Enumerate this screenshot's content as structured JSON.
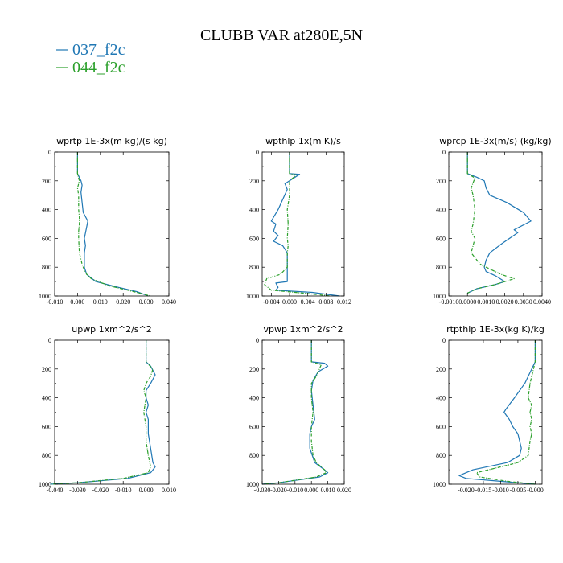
{
  "figure": {
    "title": "CLUBB VAR at280E,5N"
  },
  "legend": [
    {
      "name": "037_f2c",
      "color": "#1f77b4",
      "dash": ""
    },
    {
      "name": "044_f2c",
      "color": "#2ca02c",
      "dash": "4 1.5 1 1.5"
    }
  ],
  "chart_data": [
    {
      "type": "line",
      "title": "wprtp  1E-3x(m kg)/(s kg)",
      "xlim": [
        -0.01,
        0.04
      ],
      "ylim": [
        0,
        1000
      ],
      "y_inverted": true,
      "xticks": [
        "-0.010",
        "0.000",
        "0.010",
        "0.020",
        "0.030",
        "0.040"
      ],
      "xtick_values": [
        -0.01,
        0.0,
        0.01,
        0.02,
        0.03,
        0.04
      ],
      "yticks": [
        "0",
        "200",
        "400",
        "600",
        "800",
        "1000"
      ],
      "ytick_values": [
        0,
        200,
        400,
        600,
        800,
        1000
      ],
      "series": [
        {
          "name": "037_f2c",
          "x": [
            0.0,
            0.0,
            0.0,
            0.0015,
            0.002,
            0.0015,
            0.002,
            0.0025,
            0.0045,
            0.004,
            0.003,
            0.0035,
            0.003,
            0.003,
            0.003,
            0.004,
            0.008,
            0.018,
            0.026,
            0.031
          ],
          "y": [
            0,
            100,
            150,
            200,
            230,
            280,
            350,
            420,
            480,
            520,
            600,
            650,
            700,
            750,
            800,
            850,
            900,
            940,
            970,
            1000
          ]
        },
        {
          "name": "044_f2c",
          "x": [
            0.0,
            0.0,
            0.0,
            0.0008,
            0.0,
            0.0005,
            0.0005,
            0.0008,
            0.0008,
            0.0005,
            0.0005,
            0.0008,
            0.002,
            0.003,
            0.004,
            0.006,
            0.014,
            0.022,
            0.032
          ],
          "y": [
            0,
            100,
            150,
            200,
            250,
            300,
            400,
            450,
            500,
            550,
            600,
            700,
            780,
            820,
            850,
            880,
            930,
            960,
            1000
          ]
        }
      ]
    },
    {
      "type": "line",
      "title": "wpthlp  1x(m K)/s",
      "xlim": [
        -0.006,
        0.012
      ],
      "ylim": [
        0,
        1000
      ],
      "y_inverted": true,
      "xticks": [
        "-0.004",
        "0.000",
        "0.004",
        "0.008",
        "0.012"
      ],
      "xtick_values": [
        -0.004,
        0.0,
        0.004,
        0.008,
        0.012
      ],
      "yticks": [
        "0",
        "200",
        "400",
        "600",
        "800",
        "1000"
      ],
      "ytick_values": [
        0,
        200,
        400,
        600,
        800,
        1000
      ],
      "series": [
        {
          "name": "037_f2c",
          "x": [
            0.0,
            0.0,
            0.0,
            0.0022,
            0.0,
            -0.001,
            -0.0005,
            -0.0025,
            -0.004,
            -0.003,
            -0.0035,
            -0.0025,
            -0.0035,
            -0.0015,
            -0.0005,
            -0.0005,
            -0.0005,
            -0.003,
            -0.0025,
            -0.003,
            0.005,
            0.011
          ],
          "y": [
            0,
            100,
            150,
            155,
            200,
            220,
            260,
            400,
            480,
            500,
            550,
            580,
            620,
            650,
            700,
            800,
            900,
            910,
            940,
            960,
            975,
            1000
          ]
        },
        {
          "name": "044_f2c",
          "x": [
            0.0,
            0.0,
            0.0,
            0.0015,
            0.0,
            0.0,
            -0.0005,
            -0.0003,
            -0.0005,
            -0.0003,
            -0.0005,
            -0.0005,
            -0.002,
            -0.005,
            -0.0055,
            -0.004,
            0.003,
            0.009
          ],
          "y": [
            0,
            100,
            150,
            160,
            200,
            300,
            400,
            500,
            600,
            650,
            700,
            800,
            850,
            880,
            920,
            960,
            980,
            1000
          ]
        }
      ]
    },
    {
      "type": "line",
      "title": "wprcp  1E-3x(m/s) (kg/kg)",
      "xlim": [
        -0.001,
        0.004
      ],
      "ylim": [
        0,
        1000
      ],
      "y_inverted": true,
      "xticks": [
        "-0.0010",
        "0.0000",
        "0.0010",
        "0.0020",
        "0.0030",
        "0.0040"
      ],
      "xtick_values": [
        -0.001,
        0.0,
        0.001,
        0.002,
        0.003,
        0.004
      ],
      "yticks": [
        "0",
        "200",
        "400",
        "600",
        "800",
        "1000"
      ],
      "ytick_values": [
        0,
        200,
        400,
        600,
        800,
        1000
      ],
      "series": [
        {
          "name": "037_f2c",
          "x": [
            0.0,
            0.0,
            0.0,
            0.0005,
            0.0009,
            0.001,
            0.0012,
            0.0021,
            0.003,
            0.0034,
            0.0025,
            0.0027,
            0.0018,
            0.0012,
            0.001,
            0.0009,
            0.001,
            0.0015,
            0.002,
            0.0015,
            0.0005,
            0.0
          ],
          "y": [
            0,
            100,
            150,
            175,
            200,
            250,
            300,
            350,
            420,
            480,
            540,
            560,
            640,
            700,
            750,
            800,
            830,
            860,
            900,
            920,
            950,
            980
          ]
        },
        {
          "name": "044_f2c",
          "x": [
            0.0,
            0.0,
            0.0,
            0.0004,
            0.0002,
            0.0003,
            0.0004,
            0.0003,
            0.0002,
            0.0004,
            0.0003,
            0.0002,
            0.0005,
            0.0007,
            0.001,
            0.0018,
            0.0025,
            0.0015,
            0.0005,
            0.0
          ],
          "y": [
            0,
            100,
            150,
            180,
            250,
            300,
            400,
            500,
            550,
            600,
            650,
            700,
            750,
            780,
            800,
            850,
            880,
            920,
            950,
            980
          ]
        }
      ]
    },
    {
      "type": "line",
      "title": "upwp  1xm^2/s^2",
      "xlim": [
        -0.04,
        0.01
      ],
      "ylim": [
        0,
        1000
      ],
      "y_inverted": true,
      "xticks": [
        "-0.040",
        "-0.030",
        "-0.020",
        "-0.010",
        "0.000",
        "0.010"
      ],
      "xtick_values": [
        -0.04,
        -0.03,
        -0.02,
        -0.01,
        0.0,
        0.01
      ],
      "yticks": [
        "0",
        "200",
        "400",
        "600",
        "800",
        "1000"
      ],
      "ytick_values": [
        0,
        200,
        400,
        600,
        800,
        1000
      ],
      "series": [
        {
          "name": "037_f2c",
          "x": [
            0.0,
            0.0,
            0.0,
            0.002,
            0.004,
            0.002,
            0.0,
            0.0,
            0.001,
            0.0,
            0.001,
            0.001,
            0.002,
            0.003,
            0.004,
            0.002,
            -0.008,
            -0.03,
            -0.042
          ],
          "y": [
            0,
            100,
            150,
            180,
            240,
            300,
            350,
            400,
            450,
            500,
            550,
            650,
            750,
            850,
            880,
            920,
            960,
            990,
            1000
          ]
        },
        {
          "name": "044_f2c",
          "x": [
            0.0,
            0.0,
            0.0,
            0.003,
            0.002,
            0.0,
            -0.001,
            0.0,
            -0.001,
            0.0,
            0.0,
            0.001,
            0.002,
            0.001,
            -0.01,
            -0.03,
            -0.042
          ],
          "y": [
            0,
            100,
            150,
            200,
            250,
            300,
            350,
            400,
            500,
            600,
            700,
            800,
            880,
            920,
            960,
            990,
            1000
          ]
        }
      ]
    },
    {
      "type": "line",
      "title": "vpwp  1xm^2/s^2",
      "xlim": [
        -0.03,
        0.02
      ],
      "ylim": [
        0,
        1000
      ],
      "y_inverted": true,
      "xticks": [
        "-0.030",
        "-0.020",
        "-0.010",
        "0.000",
        "0.010",
        "0.020"
      ],
      "xtick_values": [
        -0.03,
        -0.02,
        -0.01,
        0.0,
        0.01,
        0.02
      ],
      "yticks": [
        "0",
        "200",
        "400",
        "600",
        "800",
        "1000"
      ],
      "ytick_values": [
        0,
        200,
        400,
        600,
        800,
        1000
      ],
      "series": [
        {
          "name": "037_f2c",
          "x": [
            0.0,
            0.0,
            0.0,
            0.008,
            0.01,
            0.004,
            0.001,
            0.0,
            0.001,
            0.002,
            0.0,
            -0.001,
            -0.001,
            0.002,
            0.008,
            0.01,
            0.005,
            -0.02,
            -0.03
          ],
          "y": [
            0,
            100,
            150,
            160,
            180,
            220,
            280,
            350,
            450,
            550,
            600,
            650,
            750,
            850,
            900,
            920,
            950,
            990,
            1000
          ]
        },
        {
          "name": "044_f2c",
          "x": [
            0.0,
            0.0,
            0.0,
            0.006,
            0.003,
            0.0,
            0.0,
            0.001,
            0.0,
            0.0,
            0.001,
            0.003,
            0.008,
            0.009,
            0.003,
            -0.02,
            -0.03
          ],
          "y": [
            0,
            100,
            150,
            170,
            250,
            300,
            400,
            500,
            600,
            700,
            800,
            850,
            900,
            920,
            950,
            990,
            1000
          ]
        }
      ]
    },
    {
      "type": "line",
      "title": "rtpthlp  1E-3x(kg K)/kg",
      "xlim": [
        -0.025,
        0.002
      ],
      "ylim": [
        0,
        1000
      ],
      "y_inverted": true,
      "xticks": [
        "-0.020",
        "-0.015",
        "-0.010",
        "-0.005",
        "-0.000"
      ],
      "xtick_values": [
        -0.02,
        -0.015,
        -0.01,
        -0.005,
        0.0
      ],
      "yticks": [
        "0",
        "200",
        "400",
        "600",
        "800",
        "1000"
      ],
      "ytick_values": [
        0,
        200,
        400,
        600,
        800,
        1000
      ],
      "series": [
        {
          "name": "037_f2c",
          "x": [
            0.0,
            0.0,
            0.0,
            -0.001,
            -0.003,
            -0.006,
            -0.0085,
            -0.009,
            -0.0075,
            -0.0065,
            -0.005,
            -0.0045,
            -0.004,
            -0.0045,
            -0.008,
            -0.018,
            -0.022,
            -0.02,
            -0.01,
            0.0
          ],
          "y": [
            0,
            100,
            150,
            200,
            300,
            400,
            480,
            500,
            550,
            600,
            650,
            700,
            750,
            800,
            850,
            900,
            940,
            960,
            980,
            1000
          ]
        },
        {
          "name": "044_f2c",
          "x": [
            0.0,
            0.0,
            0.0,
            -0.0005,
            -0.0015,
            -0.002,
            -0.001,
            -0.0015,
            -0.001,
            -0.0015,
            -0.001,
            -0.0015,
            -0.002,
            -0.005,
            -0.01,
            -0.017,
            -0.016,
            -0.008,
            0.0
          ],
          "y": [
            0,
            100,
            150,
            200,
            300,
            400,
            450,
            500,
            550,
            600,
            650,
            700,
            800,
            850,
            880,
            920,
            950,
            980,
            1000
          ]
        }
      ]
    }
  ]
}
